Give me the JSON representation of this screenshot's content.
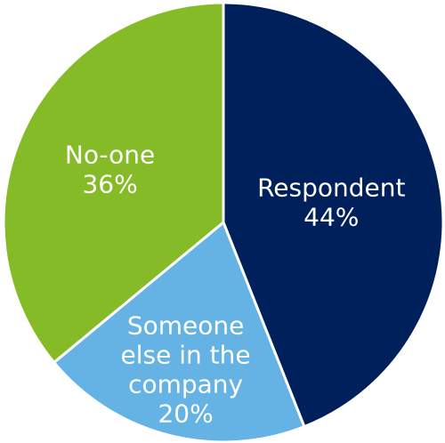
{
  "chart_data": {
    "type": "pie",
    "title": "",
    "slices": [
      {
        "label_lines": [
          "Respondent"
        ],
        "value": 44,
        "value_label": "44%",
        "color": "#00205b"
      },
      {
        "label_lines": [
          "Someone",
          "else in the",
          "company"
        ],
        "value": 20,
        "value_label": "20%",
        "color": "#64b3e4"
      },
      {
        "label_lines": [
          "No-one"
        ],
        "value": 36,
        "value_label": "36%",
        "color": "#84bb26"
      }
    ],
    "start_angle_deg": 0,
    "direction": "clockwise",
    "legend": "none",
    "data_labels": "inside"
  }
}
